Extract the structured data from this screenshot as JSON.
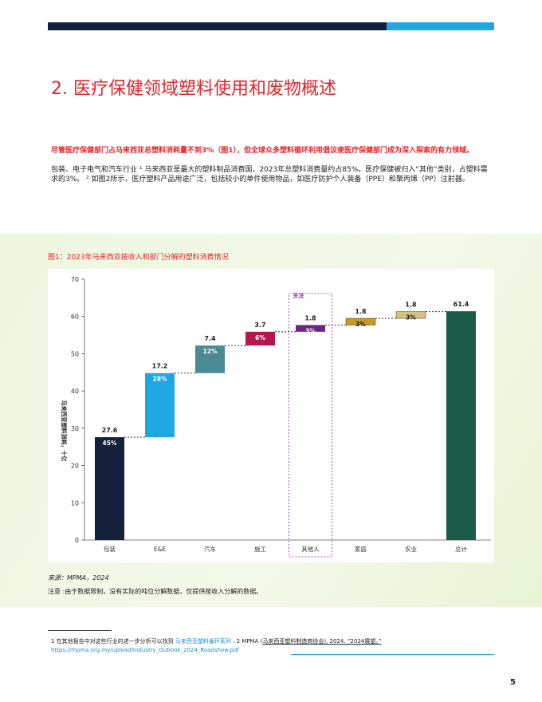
{
  "title": "2. 医疗保健领域塑料使用和废物概述",
  "lead": "尽管医疗保健部门占马来西亚总塑料消耗量不到3%（图1），但全球众多塑料循环利用倡议使医疗保健部门成为深入探索的有力领域。",
  "body": "包装、电子电气和汽车行业 ¹ 马来西亚是最大的塑料制品消费国，2023年总塑料消费量约占85%。医疗保健被归入“其他”类别，占塑料需求的3%。 ² 如图2所示，医疗塑料产品用途广泛，包括较小的单件使用物品，如医疗防护个人装备（PPE）和聚丙烯（PP）注射器。",
  "figure_caption": "图1：2023年马来西亚按收入和部门分解的塑料消费情况",
  "chart_data": {
    "type": "waterfall",
    "y_label": "马来西亚塑料消耗，十亿",
    "annotation": "关注",
    "categories": [
      "包装",
      "E&E",
      "汽车",
      "施工",
      "其他人",
      "家庭",
      "农业",
      "总计"
    ],
    "values": [
      27.6,
      17.2,
      7.4,
      3.7,
      1.8,
      1.8,
      1.8,
      61.4
    ],
    "segment_labels": [
      "45%",
      "28%",
      "12%",
      "6%",
      "3%",
      "3%",
      "3%",
      null
    ],
    "colors": [
      "#14213d",
      "#1fa7e4",
      "#4a8a93",
      "#b3174d",
      "#6a2680",
      "#c39b25",
      "#d6c27f",
      "#1a5c47"
    ],
    "total_last": true,
    "ylim": [
      0,
      70
    ],
    "yticks": [
      0,
      10,
      20,
      30,
      40,
      50,
      60,
      70
    ]
  },
  "source": "来源：MPMA，2024",
  "note": "注意 :由于数据限制，没有实际的吨位分解数据，仅提供按收入分解的数据。",
  "footnote": {
    "text1": "1 在其他报告中对这些行业的进一步分析可以找到",
    "link1": "马来西亚塑料循环系列",
    "text2": ". 2 MPMA (",
    "link2": "马来西亚塑料制造商协会), 2024. “2024展望。”",
    "url": "https://mpma.org.my/upload/Industry_Outlook_2024_Roadshow.pdf"
  },
  "page_number": "5"
}
